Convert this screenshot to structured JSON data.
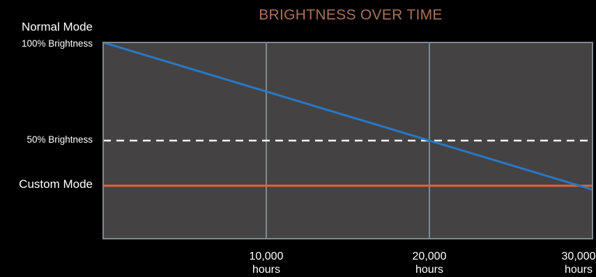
{
  "chart_data": {
    "type": "line",
    "title": "BRIGHTNESS OVER TIME",
    "xlabel": "",
    "ylabel": "",
    "xlim": [
      0,
      30000
    ],
    "ylim": [
      0,
      100
    ],
    "x_ticks": [
      {
        "value": 10000,
        "line1": "10,000",
        "line2": "hours"
      },
      {
        "value": 20000,
        "line1": "20,000",
        "line2": "hours"
      },
      {
        "value": 30000,
        "line1": "30,000",
        "line2": "hours"
      }
    ],
    "y_labels": {
      "normal_mode": "Normal Mode",
      "full_brightness": "100% Brightness",
      "half_brightness": "50% Brightness",
      "custom_mode": "Custom Mode"
    },
    "series": [
      {
        "key": "normal",
        "x": [
          0,
          30000
        ],
        "y": [
          100,
          25
        ]
      },
      {
        "key": "custom",
        "x": [
          0,
          30000
        ],
        "y": [
          27,
          27
        ]
      },
      {
        "key": "half",
        "x": [
          0,
          30000
        ],
        "y": [
          50,
          50
        ]
      }
    ],
    "vertical_gridlines_at": [
      10000,
      20000
    ],
    "grid": true
  },
  "colors": {
    "background": "#000000",
    "plot_fill": "#444243",
    "plot_border": "#7c8a94",
    "title": "#a77259",
    "label_text": "#ffffff",
    "normal_line": "#2a78c5",
    "custom_line": "#e2633a",
    "half_line": "#ffffff"
  }
}
